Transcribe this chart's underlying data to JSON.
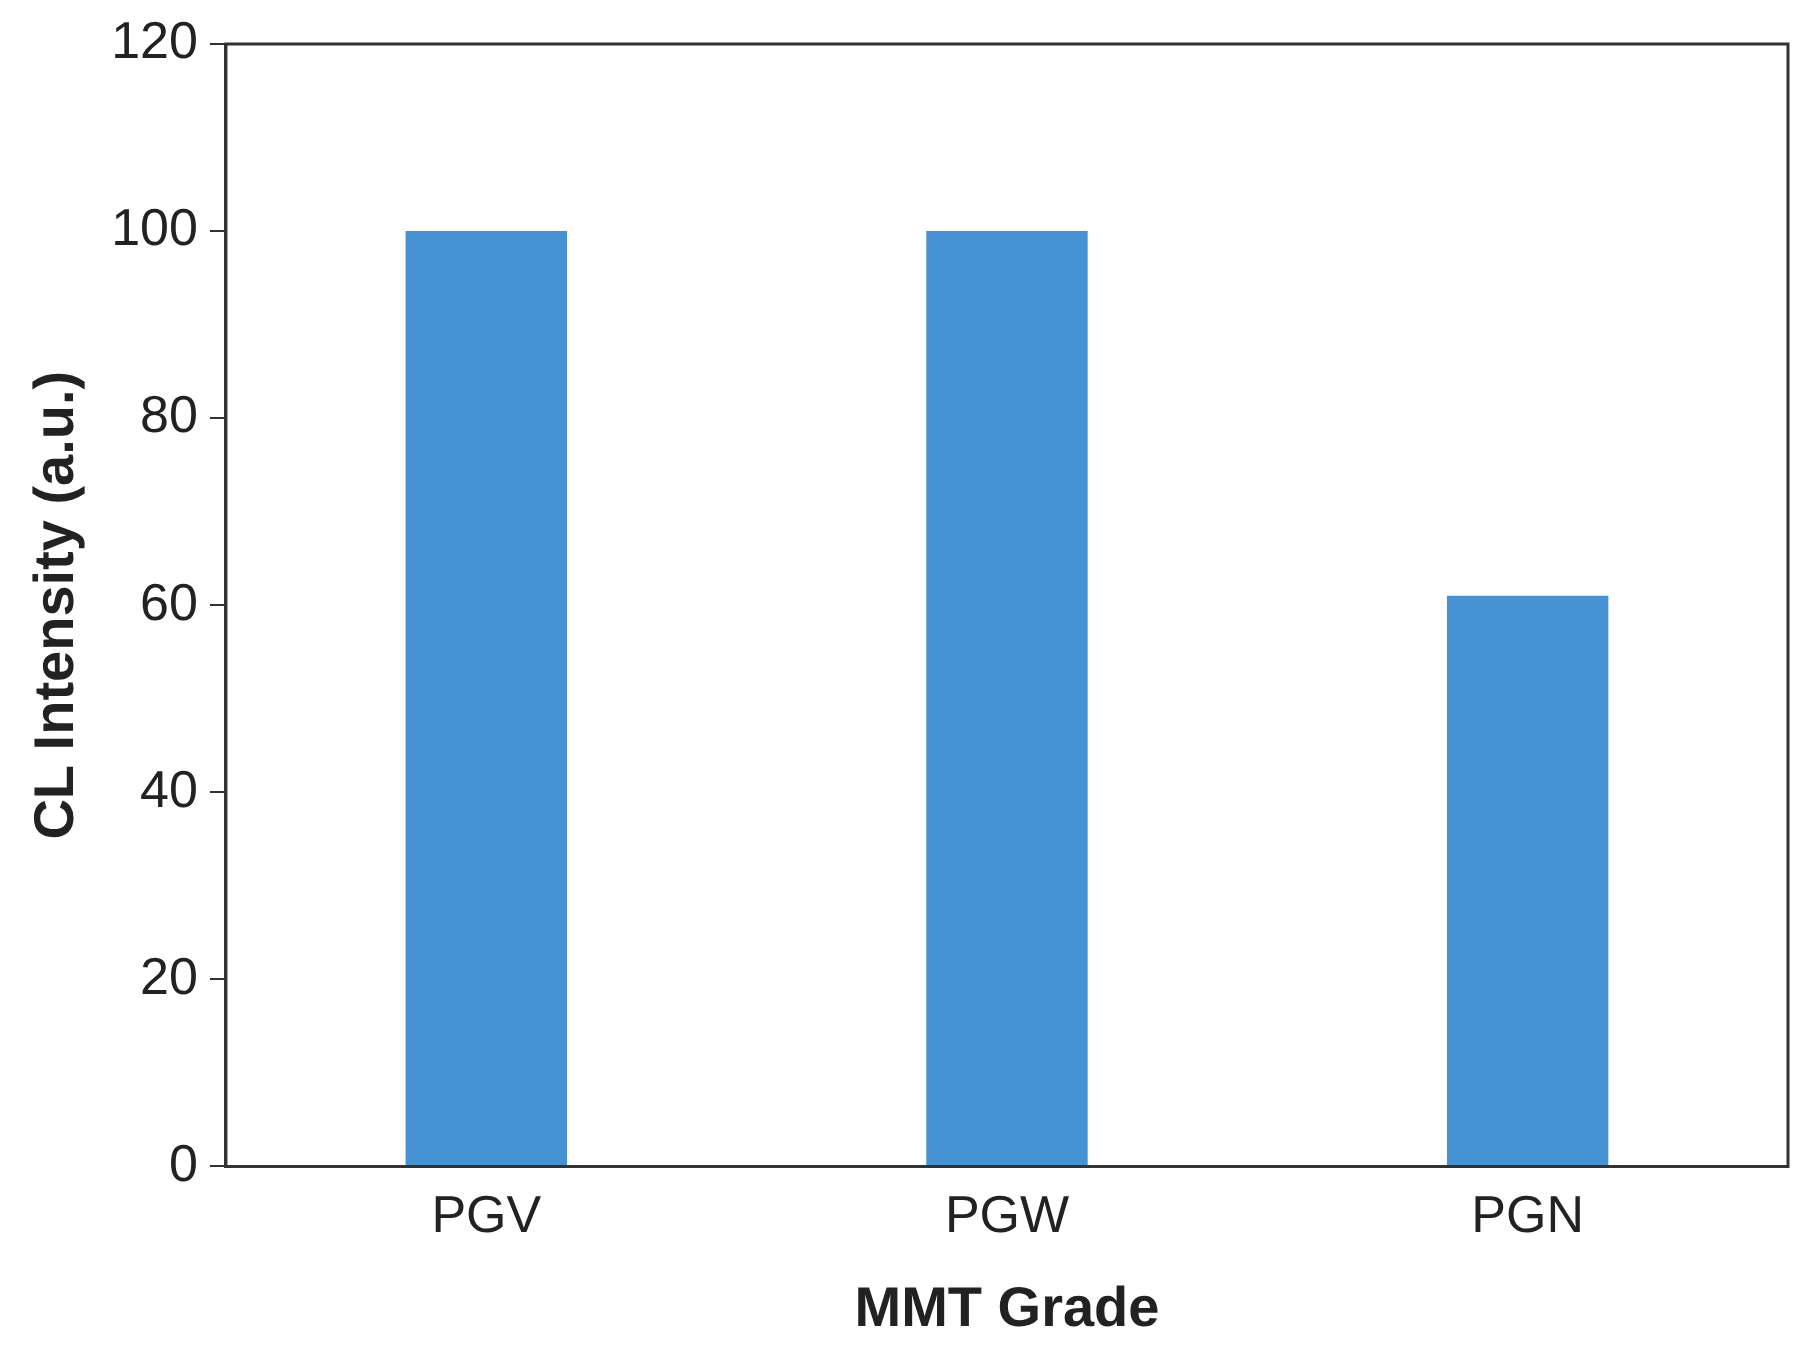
{
  "chart_data": {
    "type": "bar",
    "xlabel": "MMT Grade",
    "ylabel": "CL Intensity (a.u.)",
    "categories": [
      "PGV",
      "PGW",
      "PGN"
    ],
    "values": [
      100,
      100,
      61
    ],
    "color": "#4792d2",
    "ylim": [
      0,
      120
    ],
    "yticks": [
      0,
      20,
      40,
      60,
      80,
      100,
      120
    ],
    "grid": false,
    "legend": false
  }
}
